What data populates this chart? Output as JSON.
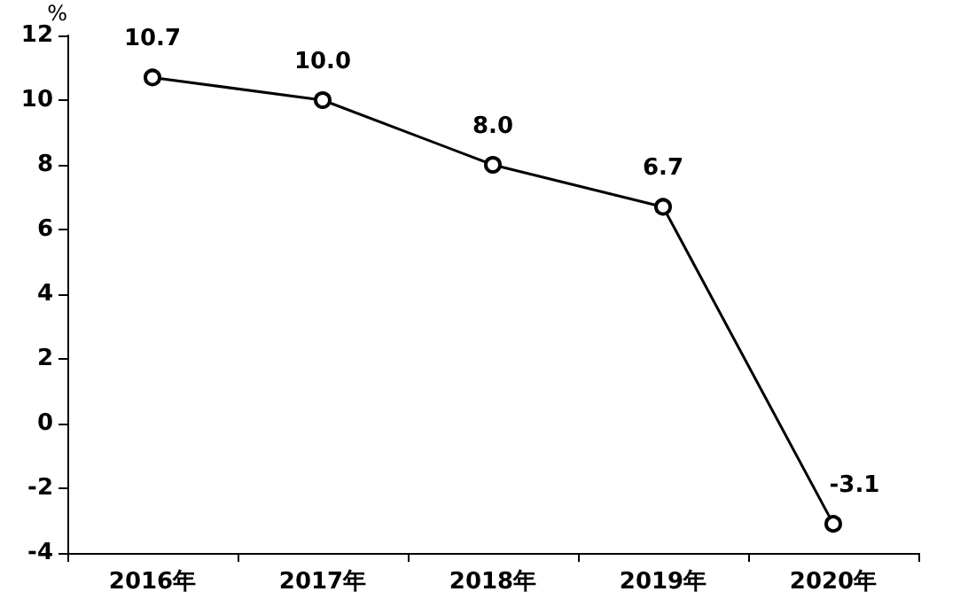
{
  "chart_data": {
    "type": "line",
    "ylabel": "%",
    "categories": [
      "2016年",
      "2017年",
      "2018年",
      "2019年",
      "2020年"
    ],
    "values": [
      10.7,
      10.0,
      8.0,
      6.7,
      -3.1
    ],
    "color": "#000000",
    "ylim": [
      -4,
      12
    ],
    "yticks": [
      -4,
      -2,
      0,
      2,
      4,
      6,
      8,
      10,
      12
    ],
    "value_labels": [
      "10.7",
      "10.0",
      "8.0",
      "6.7",
      "-3.1"
    ],
    "marker": "circle",
    "line_style": "solid"
  }
}
